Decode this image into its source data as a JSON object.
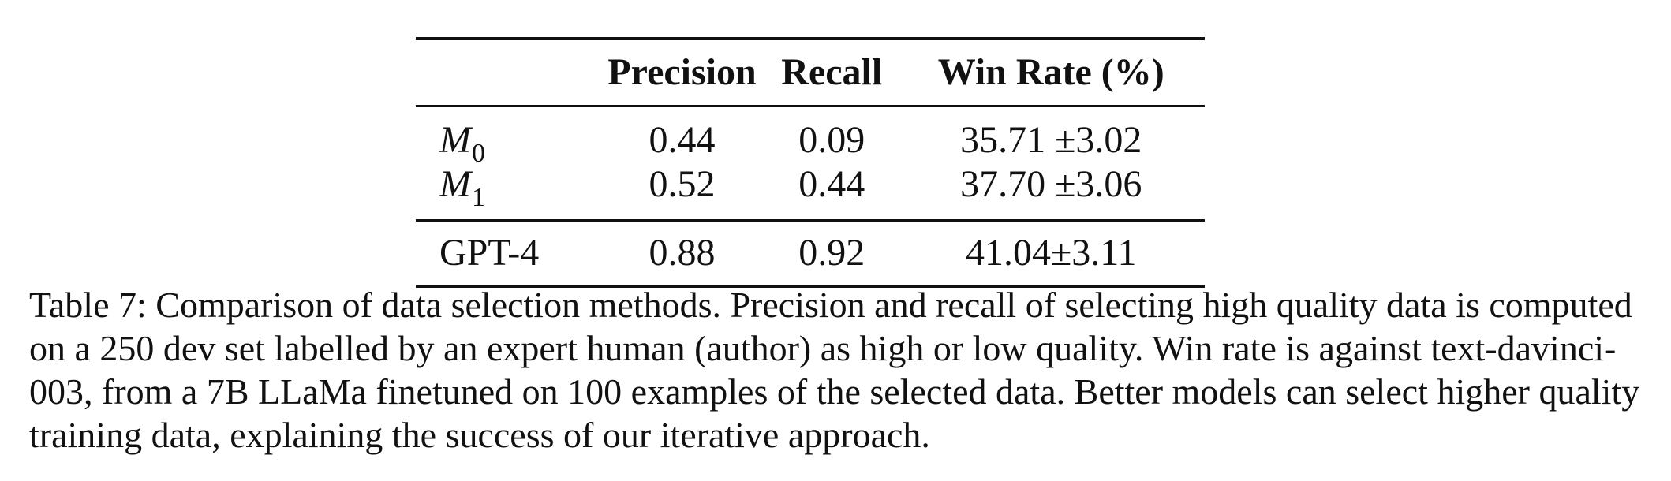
{
  "table": {
    "headers": [
      "",
      "Precision",
      "Recall",
      "Win Rate (%)"
    ],
    "rows": [
      {
        "method": "M",
        "method_sub": "0",
        "precision": "0.44",
        "recall": "0.09",
        "win_rate": "35.71 ±3.02"
      },
      {
        "method": "M",
        "method_sub": "1",
        "precision": "0.52",
        "recall": "0.44",
        "win_rate": "37.70 ±3.06"
      },
      {
        "method": "GPT-4",
        "method_sub": "",
        "precision": "0.88",
        "recall": "0.92",
        "win_rate": "41.04±3.11"
      }
    ]
  },
  "caption": "Table 7: Comparison of data selection methods. Precision and recall of selecting high quality data is computed on a 250 dev set labelled by an expert human (author) as high or low quality. Win rate is against text-davinci-003, from a 7B LLaMa finetuned on 100 examples of the selected data. Better models can select higher quality training data, explaining the success of our iterative approach."
}
